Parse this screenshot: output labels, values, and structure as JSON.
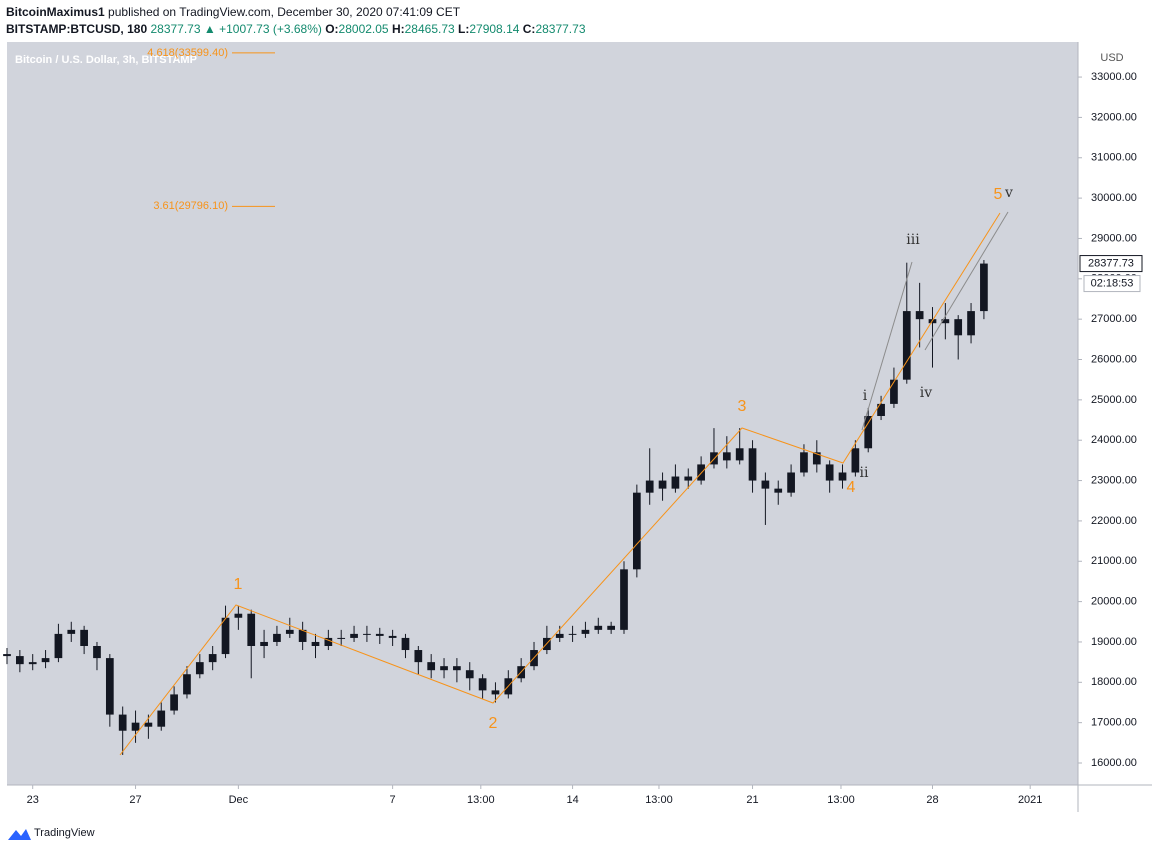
{
  "header": {
    "author": "BitcoinMaximus1",
    "published": "published on TradingView.com, December 30, 2020 07:41:09 CET",
    "symbol": "BITSTAMP:BTCUSD, 180",
    "last": "28377.73",
    "arrow": "▲",
    "change": "+1007.73 (+3.68%)",
    "o_label": "O:",
    "o": "28002.05",
    "h_label": "H:",
    "h": "28465.73",
    "l_label": "L:",
    "l": "27908.14",
    "c_label": "C:",
    "c": "28377.73"
  },
  "footer": {
    "brand": "TradingView"
  },
  "chart_data": {
    "type": "candlestick",
    "title": "Bitcoin / U.S. Dollar, 3h, BITSTAMP",
    "y_axis_label": "USD",
    "color": "#131722",
    "background": "#d1d4dc",
    "x": [
      -1,
      -0.5,
      0,
      0.5,
      1,
      1.5,
      2,
      2.5,
      3,
      3.5,
      4,
      4.5,
      5,
      5.5,
      6,
      6.5,
      7,
      7.5,
      8,
      8.5,
      9,
      9.5,
      10,
      10.5,
      11,
      11.5,
      12,
      12.5,
      13,
      13.5,
      14,
      14.5,
      15,
      15.5,
      16,
      16.5,
      17,
      17.5,
      18,
      18.5,
      19,
      19.5,
      20,
      20.5,
      21,
      21.5,
      22,
      22.5,
      23,
      23.5,
      24,
      24.5,
      25,
      25.5,
      26,
      26.5,
      27,
      27.5,
      28,
      28.5,
      29,
      29.5,
      30,
      30.5,
      31,
      31.5,
      32,
      32.5,
      33,
      33.5,
      34,
      34.5,
      35,
      35.5,
      36,
      36.5,
      37
    ],
    "open": [
      18700,
      18650,
      18450,
      18500,
      18600,
      19200,
      19300,
      18900,
      18600,
      17200,
      16800,
      17000,
      16900,
      17300,
      17700,
      18200,
      18500,
      18700,
      19600,
      19700,
      18900,
      19000,
      19200,
      19300,
      19000,
      18900,
      19100,
      19100,
      19200,
      19200,
      19150,
      19100,
      18800,
      18500,
      18300,
      18400,
      18300,
      18100,
      17800,
      17700,
      18100,
      18400,
      18800,
      19100,
      19200,
      19200,
      19300,
      19400,
      19300,
      20800,
      22700,
      23000,
      22800,
      23100,
      23000,
      23400,
      23700,
      23500,
      23800,
      23000,
      22800,
      22700,
      23200,
      23700,
      23400,
      23000,
      23200,
      23800,
      24600,
      24900,
      25500,
      27200,
      27000,
      26900,
      27000,
      26600,
      27200
    ],
    "high": [
      18850,
      18800,
      18700,
      18800,
      19450,
      19500,
      19400,
      19000,
      18700,
      17400,
      17300,
      17200,
      17500,
      17900,
      18400,
      18700,
      18900,
      19900,
      19900,
      19800,
      19300,
      19400,
      19600,
      19500,
      19200,
      19300,
      19300,
      19400,
      19400,
      19350,
      19300,
      19200,
      18900,
      18700,
      18600,
      18600,
      18500,
      18200,
      18000,
      18300,
      18600,
      19000,
      19400,
      19400,
      19400,
      19500,
      19600,
      19500,
      21000,
      22900,
      23800,
      23200,
      23400,
      23300,
      23600,
      24300,
      24100,
      24300,
      24000,
      23200,
      23000,
      23400,
      23900,
      24000,
      23500,
      23400,
      24000,
      24800,
      25100,
      25800,
      28400,
      27900,
      27300,
      27400,
      27100,
      27400,
      28465.73
    ],
    "low": [
      18450,
      18250,
      18300,
      18350,
      18500,
      19000,
      18700,
      18300,
      16900,
      16200,
      16500,
      16600,
      16800,
      17200,
      17600,
      18100,
      18300,
      18600,
      19300,
      18100,
      18600,
      18900,
      19100,
      18800,
      18600,
      18800,
      18900,
      19000,
      19000,
      18950,
      18900,
      18600,
      18200,
      18100,
      18100,
      18000,
      17800,
      17600,
      17500,
      17600,
      18000,
      18300,
      18700,
      19000,
      19000,
      19100,
      19200,
      19200,
      19200,
      20600,
      22400,
      22500,
      22700,
      22800,
      22900,
      23300,
      23300,
      23400,
      22700,
      21900,
      22400,
      22600,
      23100,
      23200,
      22700,
      22800,
      23100,
      23700,
      24500,
      24800,
      25400,
      26300,
      25800,
      26500,
      26000,
      26400,
      27000
    ],
    "close": [
      18650,
      18450,
      18500,
      18600,
      19200,
      19300,
      18900,
      18600,
      17200,
      16800,
      17000,
      16900,
      17300,
      17700,
      18200,
      18500,
      18700,
      19600,
      19700,
      18900,
      19000,
      19200,
      19300,
      19000,
      18900,
      19100,
      19100,
      19200,
      19200,
      19150,
      19100,
      18800,
      18500,
      18300,
      18400,
      18300,
      18100,
      17800,
      17700,
      18100,
      18400,
      18800,
      19100,
      19200,
      19200,
      19300,
      19400,
      19300,
      20800,
      22700,
      23000,
      22800,
      23100,
      23000,
      23400,
      23700,
      23500,
      23800,
      23000,
      22800,
      22700,
      23200,
      23700,
      23400,
      23000,
      23200,
      23800,
      24600,
      24900,
      25500,
      27200,
      27000,
      26900,
      27000,
      26600,
      27200,
      28377.73
    ],
    "xlim": [
      -1,
      40.66
    ],
    "xticks": [
      {
        "value": 0,
        "label": "23"
      },
      {
        "value": 4,
        "label": "27"
      },
      {
        "value": 8,
        "label": "Dec"
      },
      {
        "value": 14,
        "label": "7"
      },
      {
        "value": 17.43,
        "label": "13:00"
      },
      {
        "value": 21,
        "label": "14"
      },
      {
        "value": 24.36,
        "label": "13:00"
      },
      {
        "value": 28,
        "label": "21"
      },
      {
        "value": 31.44,
        "label": "13:00"
      },
      {
        "value": 35,
        "label": "28"
      },
      {
        "value": 38.8,
        "label": "2021"
      }
    ],
    "ylim": [
      15455,
      33869
    ],
    "yticks": [
      {
        "value": 16000,
        "label": "16000.00"
      },
      {
        "value": 17000,
        "label": "17000.00"
      },
      {
        "value": 18000,
        "label": "18000.00"
      },
      {
        "value": 19000,
        "label": "19000.00"
      },
      {
        "value": 20000,
        "label": "20000.00"
      },
      {
        "value": 21000,
        "label": "21000.00"
      },
      {
        "value": 22000,
        "label": "22000.00"
      },
      {
        "value": 23000,
        "label": "23000.00"
      },
      {
        "value": 24000,
        "label": "24000.00"
      },
      {
        "value": 25000,
        "label": "25000.00"
      },
      {
        "value": 26000,
        "label": "26000.00"
      },
      {
        "value": 27000,
        "label": "27000.00"
      },
      {
        "value": 28000,
        "label": "28000.00"
      },
      {
        "value": 29000,
        "label": "29000.00"
      },
      {
        "value": 30000,
        "label": "30000.00"
      },
      {
        "value": 31000,
        "label": "31000.00"
      },
      {
        "value": 32000,
        "label": "32000.00"
      },
      {
        "value": 33000,
        "label": "33000.00"
      }
    ],
    "countdown": "02:18:53",
    "fib_levels": [
      {
        "label": "4.618(33599.40)",
        "value": 33599.4
      },
      {
        "label": "3.61(29796.10)",
        "value": 29796.1
      }
    ],
    "fib_color": "#f7931a",
    "annotations": [
      "1",
      "2",
      "3",
      "4",
      "5",
      "i",
      "ii",
      "iii",
      "iv",
      "v"
    ]
  }
}
